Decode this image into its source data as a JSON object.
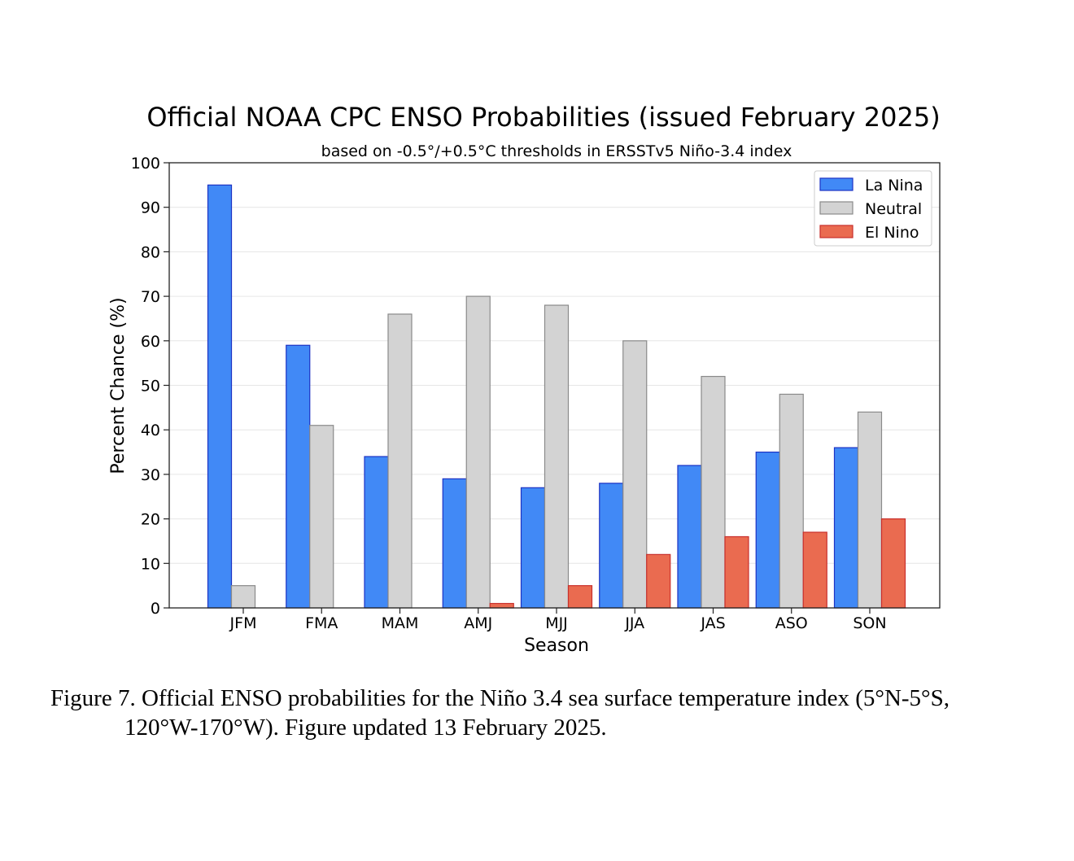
{
  "chart_data": {
    "type": "bar",
    "title": "Official NOAA CPC ENSO Probabilities (issued February 2025)",
    "subtitle": "based on -0.5°/+0.5°C thresholds in ERSSTv5 Niño-3.4 index",
    "xlabel": "Season",
    "ylabel": "Percent Chance (%)",
    "ylim": [
      0,
      100
    ],
    "yticks": [
      "0",
      "10",
      "20",
      "30",
      "40",
      "50",
      "60",
      "70",
      "80",
      "90",
      "100"
    ],
    "grid": true,
    "legend_position": "top-right",
    "categories": [
      "JFM",
      "FMA",
      "MAM",
      "AMJ",
      "MJJ",
      "JJA",
      "JAS",
      "ASO",
      "SON"
    ],
    "series": [
      {
        "name": "La Nina",
        "color": "#4189f6",
        "edge": "#1d33c4",
        "values": [
          95,
          59,
          34,
          29,
          27,
          28,
          32,
          35,
          36
        ]
      },
      {
        "name": "Neutral",
        "color": "#d3d3d3",
        "edge": "#8a8a8a",
        "values": [
          5,
          41,
          66,
          70,
          68,
          60,
          52,
          48,
          44
        ]
      },
      {
        "name": "El Nino",
        "color": "#ea6b50",
        "edge": "#c9302c",
        "values": [
          0,
          0,
          0,
          1,
          5,
          12,
          16,
          17,
          20
        ]
      }
    ]
  },
  "caption": {
    "line1": "Figure 7. Official ENSO probabilities for the Niño 3.4 sea surface temperature index (5°N-5°S,",
    "line2": "120°W-170°W). Figure updated 13 February 2025."
  }
}
